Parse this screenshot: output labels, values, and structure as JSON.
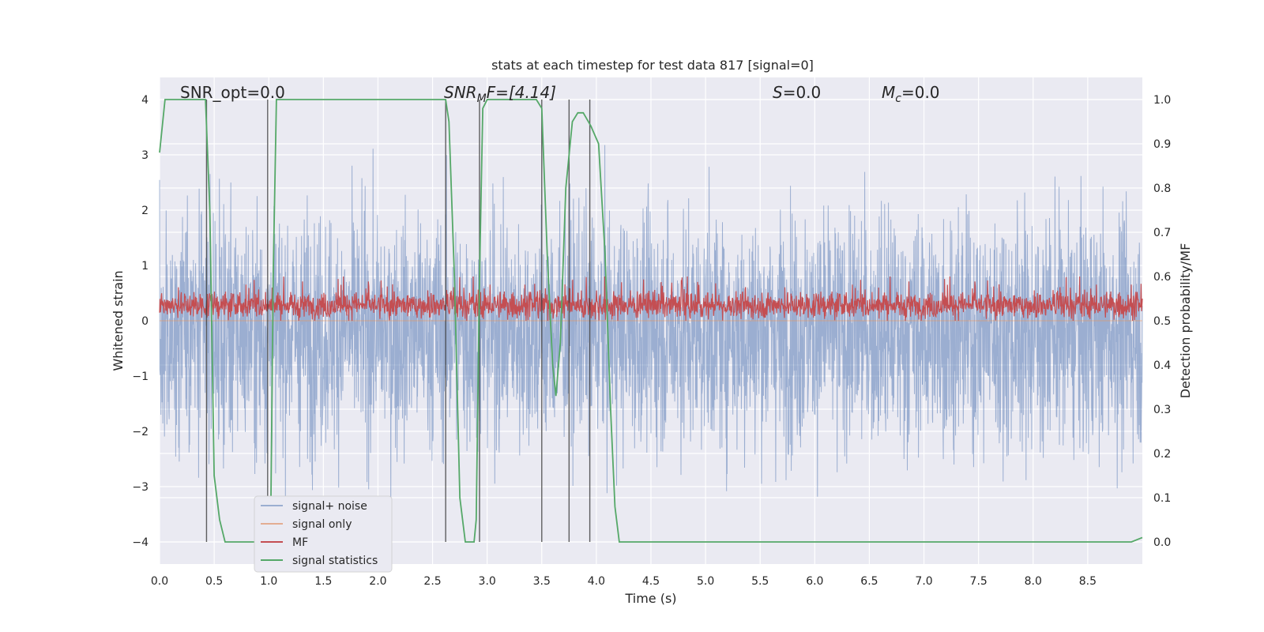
{
  "chart_data": {
    "type": "line",
    "title": "stats at each timestep for test data 817 [signal=0]",
    "xlabel": "Time (s)",
    "ylabel_left": "Whitened strain",
    "ylabel_right": "Detection probability/MF",
    "xlim": [
      0,
      9.0
    ],
    "ylim_left": [
      -4.4,
      4.4
    ],
    "ylim_right": [
      -0.05,
      1.05
    ],
    "grid": true,
    "legend_position": "lower-left",
    "x_ticks": [
      "0.0",
      "0.5",
      "1.0",
      "1.5",
      "2.0",
      "2.5",
      "3.0",
      "3.5",
      "4.0",
      "4.5",
      "5.0",
      "5.5",
      "6.0",
      "6.5",
      "7.0",
      "7.5",
      "8.0",
      "8.5"
    ],
    "y_ticks_left": [
      "−4",
      "−3",
      "−2",
      "−1",
      "0",
      "1",
      "2",
      "3",
      "4"
    ],
    "y_ticks_right": [
      "0.0",
      "0.1",
      "0.2",
      "0.3",
      "0.4",
      "0.5",
      "0.6",
      "0.7",
      "0.8",
      "0.9",
      "1.0"
    ],
    "annotations": {
      "snr_opt": "SNR_opt=0.0",
      "snr_mf_sym": "SNR",
      "snr_mf_sub": "M",
      "snr_mf_rest": "F=[4.14]",
      "s_sym": "S",
      "s_rest": "=0.0",
      "mc_sym": "M",
      "mc_sub": "c",
      "mc_rest": "=0.0"
    },
    "series": [
      {
        "name": "signal+ noise",
        "color": "#4c72b0",
        "axis": "left",
        "description_values": "whitened noise, roughly within [-3.7, 3.3]"
      },
      {
        "name": "signal only",
        "color": "#dd8452",
        "axis": "left",
        "values": "zero (signal=0)"
      },
      {
        "name": "MF",
        "color": "#c44e52",
        "axis": "right",
        "range": [
          0.5,
          0.6
        ]
      },
      {
        "name": "signal statistics",
        "color": "#55a868",
        "axis": "right",
        "x": [
          0.0,
          0.05,
          0.1,
          0.2,
          0.3,
          0.4,
          0.42,
          0.46,
          0.5,
          0.55,
          0.6,
          0.75,
          0.9,
          0.97,
          1.0,
          1.02,
          1.04,
          1.07,
          1.1,
          1.3,
          1.6,
          2.0,
          2.4,
          2.62,
          2.65,
          2.7,
          2.75,
          2.8,
          2.88,
          2.9,
          2.93,
          2.96,
          3.0,
          3.3,
          3.45,
          3.5,
          3.55,
          3.6,
          3.63,
          3.67,
          3.72,
          3.78,
          3.83,
          3.88,
          3.95,
          4.02,
          4.08,
          4.13,
          4.17,
          4.21,
          4.3,
          5.0,
          6.0,
          7.0,
          8.0,
          8.9,
          9.0
        ],
        "values": [
          0.88,
          1.0,
          1.0,
          1.0,
          1.0,
          1.0,
          1.0,
          0.75,
          0.15,
          0.05,
          0.0,
          0.0,
          0.0,
          0.0,
          0.0,
          0.1,
          0.6,
          1.0,
          1.0,
          1.0,
          1.0,
          1.0,
          1.0,
          1.0,
          0.95,
          0.6,
          0.1,
          0.0,
          0.0,
          0.05,
          0.6,
          0.98,
          1.0,
          1.0,
          1.0,
          0.98,
          0.65,
          0.4,
          0.33,
          0.45,
          0.8,
          0.95,
          0.97,
          0.97,
          0.94,
          0.9,
          0.65,
          0.3,
          0.08,
          0.0,
          0.0,
          0.0,
          0.0,
          0.0,
          0.0,
          0.0,
          0.01
        ]
      }
    ],
    "vertical_markers_x": [
      0.43,
      0.99,
      2.62,
      2.93,
      3.5,
      3.75,
      3.94
    ],
    "legend": [
      "signal+ noise",
      "signal only",
      "MF",
      "signal statistics"
    ]
  }
}
